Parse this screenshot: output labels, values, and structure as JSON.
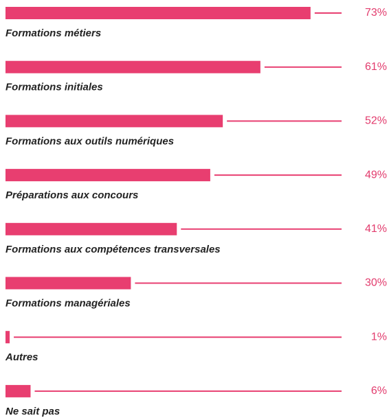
{
  "chart_data": {
    "type": "bar",
    "orientation": "horizontal",
    "categories": [
      "Formations métiers",
      "Formations initiales",
      "Formations aux outils numériques",
      "Préparations aux concours",
      "Formations aux compétences transversales",
      "Formations managériales",
      "Autres",
      "Ne sait pas"
    ],
    "values": [
      73,
      61,
      52,
      49,
      41,
      30,
      1,
      6
    ],
    "value_labels": [
      "73%",
      "61%",
      "52%",
      "49%",
      "41%",
      "30%",
      "1%",
      "6%"
    ],
    "color": "#e83e70"
  }
}
